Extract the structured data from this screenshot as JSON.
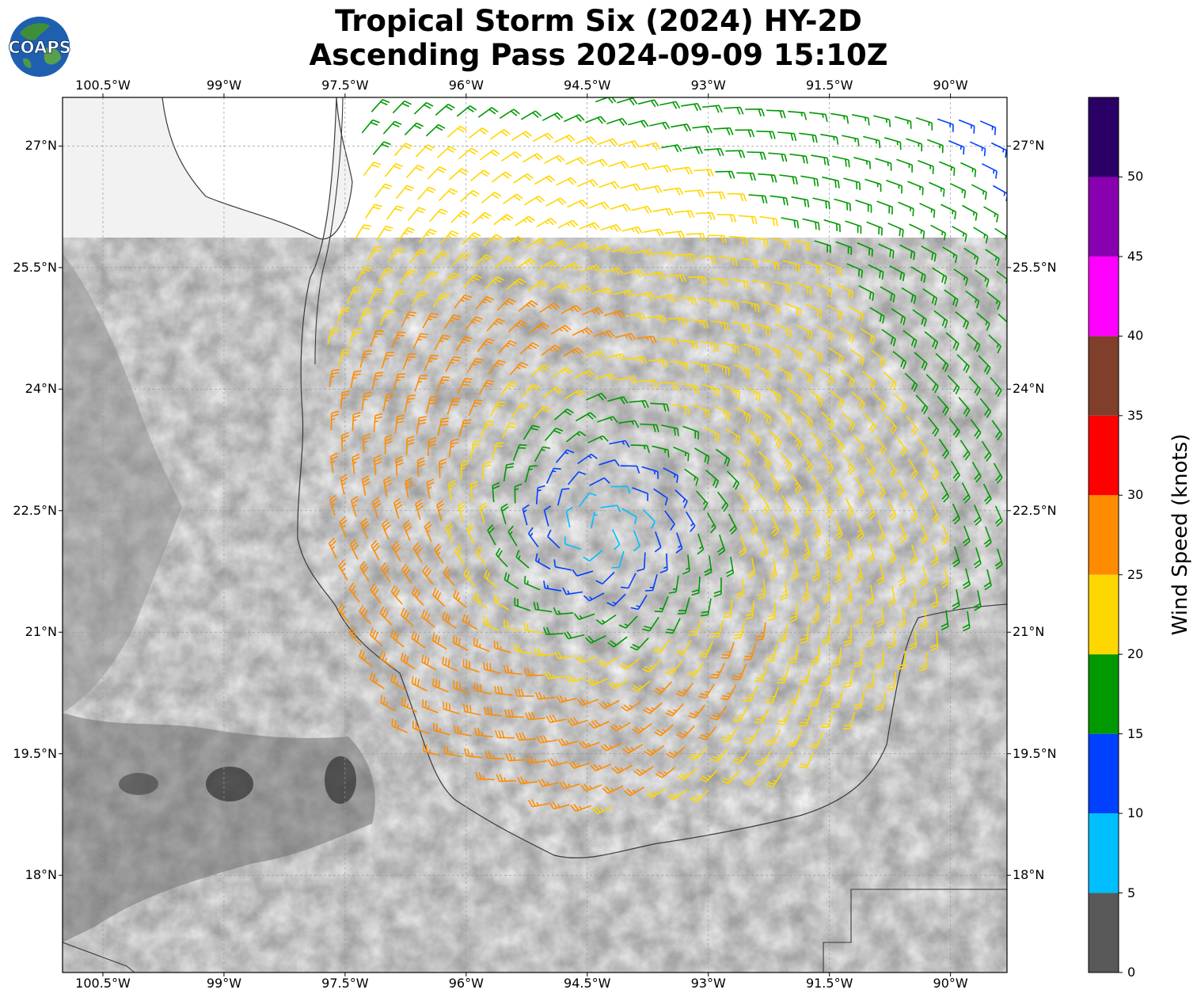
{
  "title": {
    "line1": "Tropical Storm Six (2024) HY-2D",
    "line2": "Ascending Pass 2024-09-09 15:10Z"
  },
  "logo": {
    "text": "COAPS",
    "icon": "globe-icon"
  },
  "map": {
    "lon_range": [
      -101.0,
      -89.3
    ],
    "lat_range": [
      16.8,
      27.6
    ],
    "grid": true,
    "lon_ticks": [
      "100.5°W",
      "99°W",
      "97.5°W",
      "96°W",
      "94.5°W",
      "93°W",
      "91.5°W",
      "90°W"
    ],
    "lat_ticks": [
      "27°N",
      "25.5°N",
      "24°N",
      "22.5°N",
      "21°N",
      "19.5°N",
      "18°N"
    ],
    "storm_center": {
      "lon": -94.4,
      "lat": 22.25
    },
    "swath_edge": "west"
  },
  "colorbar": {
    "label": "Wind Speed (knots)",
    "ticks": [
      "0",
      "5",
      "10",
      "15",
      "20",
      "25",
      "30",
      "35",
      "40",
      "45",
      "50"
    ],
    "bins": [
      {
        "min": 0,
        "max": 5,
        "color": "#595959"
      },
      {
        "min": 5,
        "max": 10,
        "color": "#00bfff"
      },
      {
        "min": 10,
        "max": 15,
        "color": "#0040ff"
      },
      {
        "min": 15,
        "max": 20,
        "color": "#009900"
      },
      {
        "min": 20,
        "max": 25,
        "color": "#ffd700"
      },
      {
        "min": 25,
        "max": 30,
        "color": "#ff8c00"
      },
      {
        "min": 30,
        "max": 35,
        "color": "#ff0000"
      },
      {
        "min": 35,
        "max": 40,
        "color": "#7f3f2a"
      },
      {
        "min": 40,
        "max": 45,
        "color": "#ff00ff"
      },
      {
        "min": 45,
        "max": 50,
        "color": "#8800b0"
      },
      {
        "min": 50,
        "max": 55,
        "color": "#2a0066"
      }
    ]
  }
}
